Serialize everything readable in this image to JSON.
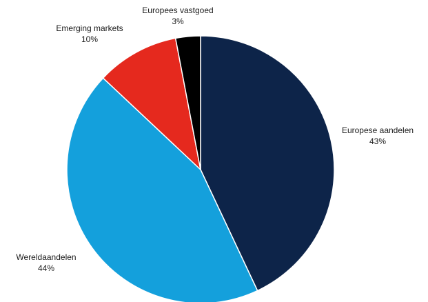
{
  "chart_data": {
    "type": "pie",
    "title": "",
    "start_angle_deg": 0,
    "direction": "clockwise",
    "slices": [
      {
        "name": "Europese aandelen",
        "value": 43,
        "label": "43%",
        "color": "#0d2449"
      },
      {
        "name": "Wereldaandelen",
        "value": 44,
        "label": "44%",
        "color": "#14a0dc"
      },
      {
        "name": "Emerging markets",
        "value": 10,
        "label": "10%",
        "color": "#e5291e"
      },
      {
        "name": "Europees vastgoed",
        "value": 3,
        "label": "3%",
        "color": "#000000"
      }
    ]
  }
}
